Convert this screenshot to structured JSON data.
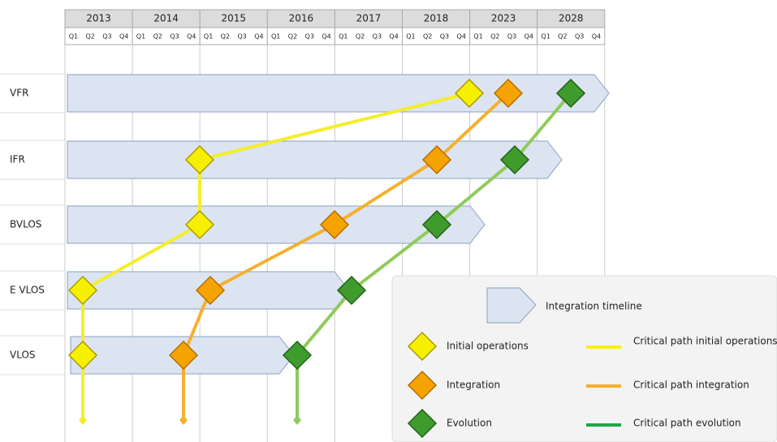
{
  "header": {
    "years": [
      "2013",
      "2014",
      "2015",
      "2016",
      "2017",
      "2018",
      "2023",
      "2028"
    ],
    "quarters": [
      "Q1",
      "Q2",
      "Q3",
      "Q4"
    ]
  },
  "rows": [
    {
      "label": "VFR"
    },
    {
      "label": "IFR"
    },
    {
      "label": "BVLOS"
    },
    {
      "label": "E VLOS"
    },
    {
      "label": "VLOS"
    }
  ],
  "legend": {
    "timeline": "Integration timeline",
    "initial": "Initial operations",
    "integration": "Integration",
    "evolution": "Evolution",
    "path_initial": "Critical path initial operations",
    "path_integration": "Critical path integration",
    "path_evolution": "Critical path evolution"
  }
}
